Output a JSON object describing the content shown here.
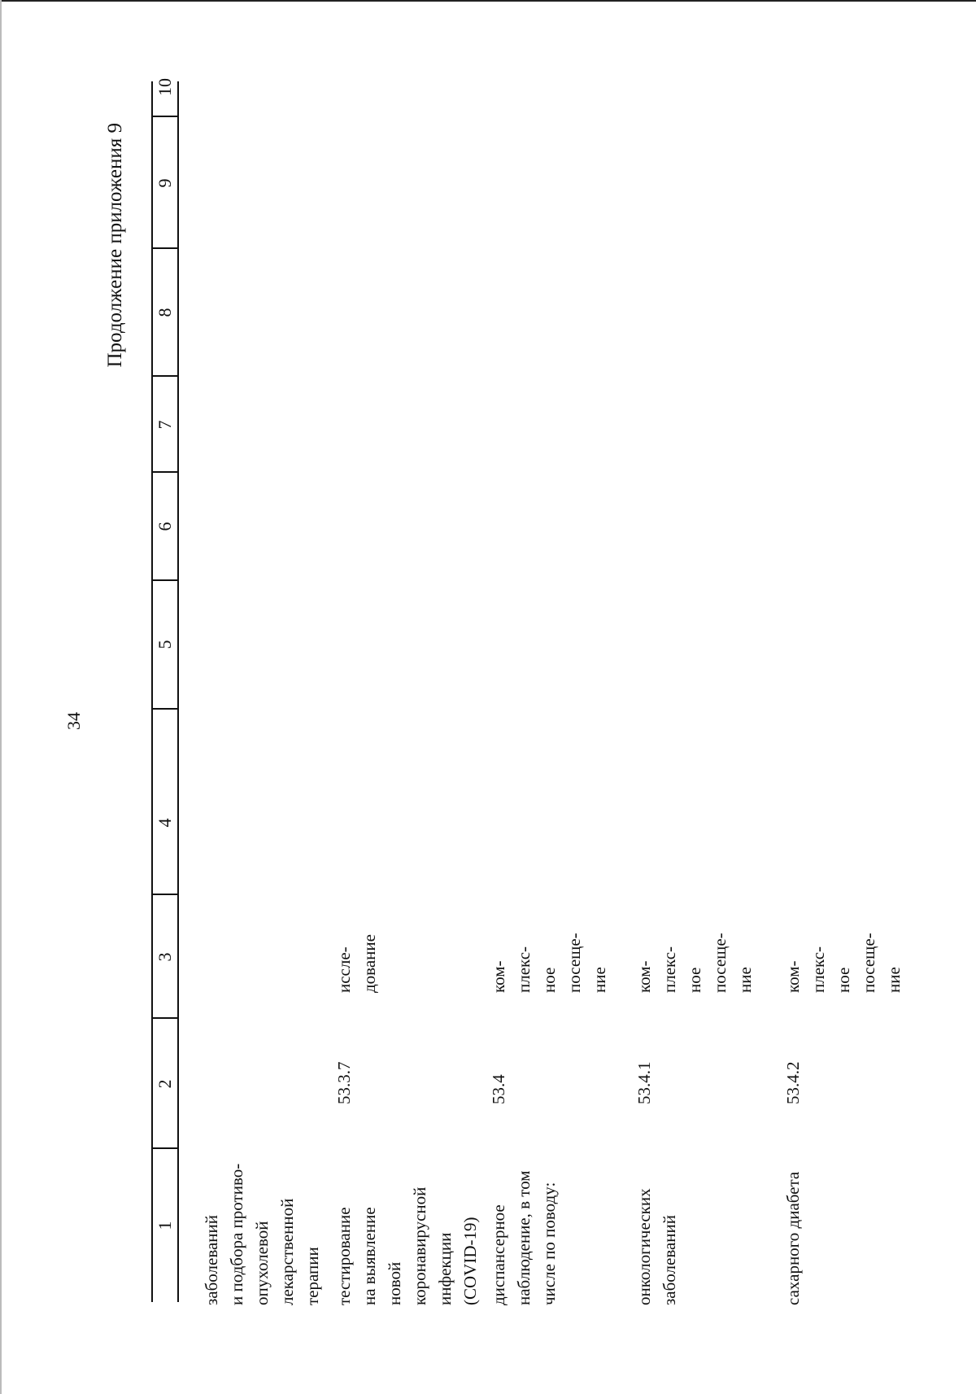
{
  "page_number": "34",
  "continuation_title": "Продолжение приложения 9",
  "column_numbers": [
    "1",
    "2",
    "3",
    "4",
    "5",
    "6",
    "7",
    "8",
    "9",
    "10"
  ],
  "rows": [
    {
      "name": "заболеваний\nи подбора противо-\nопухолевой\nлекарственной\nтерапии",
      "code": "",
      "unit": ""
    },
    {
      "name": "тестирование\nна выявление\nновой\nкоронавирусной\nинфекции\n(COVID-19)",
      "code": "53.3.7",
      "unit": "иссле-\nдование"
    },
    {
      "name": "диспансерное\nнаблюдение, в том\nчисле по поводу:",
      "code": "53.4",
      "unit": "ком-\nплекс-\nное\nпосеще-\nние"
    },
    {
      "name": "онкологических\nзаболеваний",
      "code": "53.4.1",
      "unit": "ком-\nплекс-\nное\nпосеще-\nние"
    },
    {
      "name": "сахарного диабета",
      "code": "53.4.2",
      "unit": "ком-\nплекс-\nное\nпосеще-\nние"
    }
  ]
}
